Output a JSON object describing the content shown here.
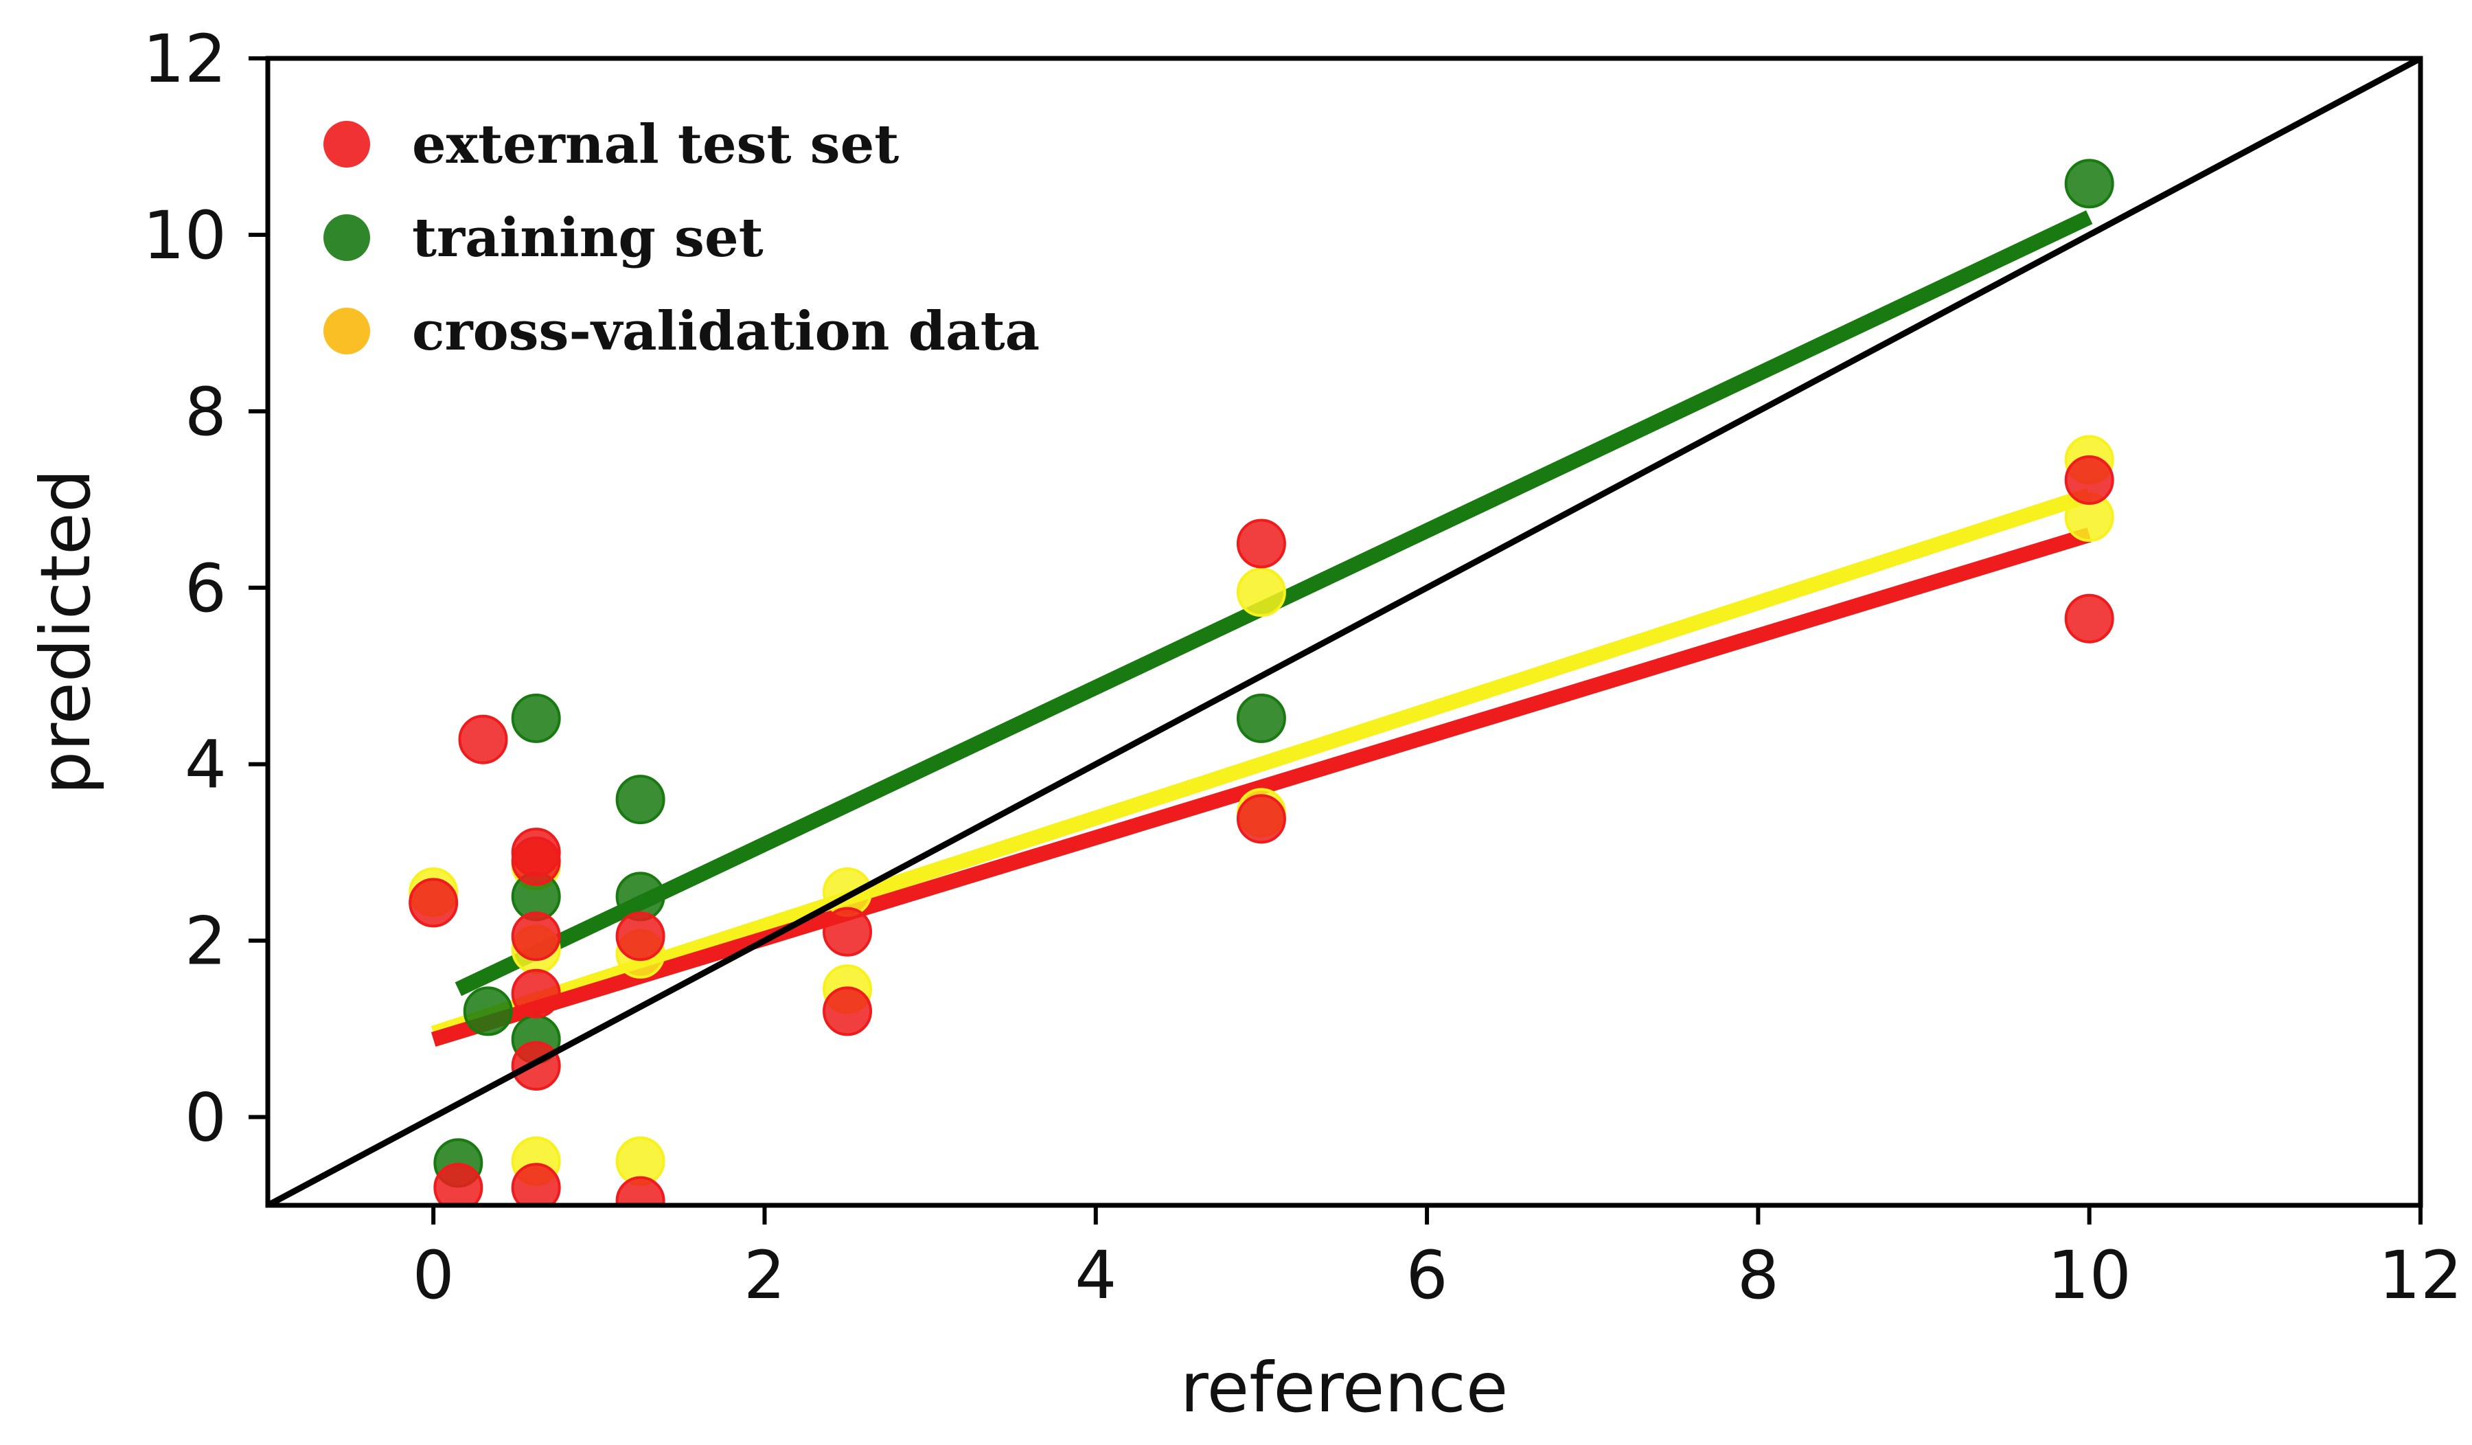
{
  "chart_data": {
    "type": "scatter",
    "title": "",
    "xlabel": "reference",
    "ylabel": "predicted",
    "xlim": [
      -1,
      12
    ],
    "ylim": [
      -1,
      12
    ],
    "xticks": [
      0,
      2,
      4,
      6,
      8,
      10,
      12
    ],
    "yticks": [
      0,
      2,
      4,
      6,
      8,
      10,
      12
    ],
    "grid": false,
    "legend_position": "top-left",
    "colors": {
      "external": "#ee1c1c",
      "training": "#1a7a12",
      "crossval": "#f7f21e",
      "crossval_legend": "#f9b80c",
      "identity": "#000000"
    },
    "series": [
      {
        "name": "external test set",
        "key": "external",
        "points": [
          [
            0.0,
            2.43
          ],
          [
            0.3,
            4.28
          ],
          [
            0.62,
            3.0
          ],
          [
            0.62,
            2.9
          ],
          [
            0.62,
            2.05
          ],
          [
            0.62,
            1.4
          ],
          [
            0.62,
            0.58
          ],
          [
            0.62,
            -0.8
          ],
          [
            0.15,
            -0.8
          ],
          [
            1.25,
            2.05
          ],
          [
            1.25,
            -0.95
          ],
          [
            2.5,
            2.1
          ],
          [
            2.5,
            1.2
          ],
          [
            5.0,
            6.5
          ],
          [
            5.0,
            3.38
          ],
          [
            10.0,
            7.22
          ],
          [
            10.0,
            5.65
          ]
        ],
        "fit": {
          "x": [
            0.0,
            10.0
          ],
          "y": [
            0.88,
            6.6
          ]
        }
      },
      {
        "name": "training set",
        "key": "training",
        "points": [
          [
            0.15,
            -0.52
          ],
          [
            0.33,
            1.2
          ],
          [
            0.62,
            4.52
          ],
          [
            0.62,
            2.5
          ],
          [
            0.62,
            0.88
          ],
          [
            1.25,
            3.6
          ],
          [
            1.25,
            2.5
          ],
          [
            5.0,
            4.52
          ],
          [
            10.0,
            10.58
          ]
        ],
        "fit": {
          "x": [
            0.15,
            10.0
          ],
          "y": [
            1.45,
            10.2
          ]
        }
      },
      {
        "name": "cross-validation data",
        "key": "crossval",
        "points": [
          [
            0.0,
            2.55
          ],
          [
            0.62,
            2.85
          ],
          [
            0.62,
            1.9
          ],
          [
            0.62,
            -0.5
          ],
          [
            1.25,
            1.85
          ],
          [
            1.25,
            -0.5
          ],
          [
            2.5,
            2.55
          ],
          [
            2.5,
            1.45
          ],
          [
            5.0,
            5.95
          ],
          [
            5.0,
            3.45
          ],
          [
            10.0,
            7.45
          ],
          [
            10.0,
            6.8
          ]
        ],
        "fit": {
          "x": [
            0.0,
            10.0
          ],
          "y": [
            0.95,
            7.05
          ]
        }
      }
    ],
    "identity_line": {
      "x": [
        -1,
        12
      ],
      "y": [
        -1,
        12
      ]
    }
  }
}
